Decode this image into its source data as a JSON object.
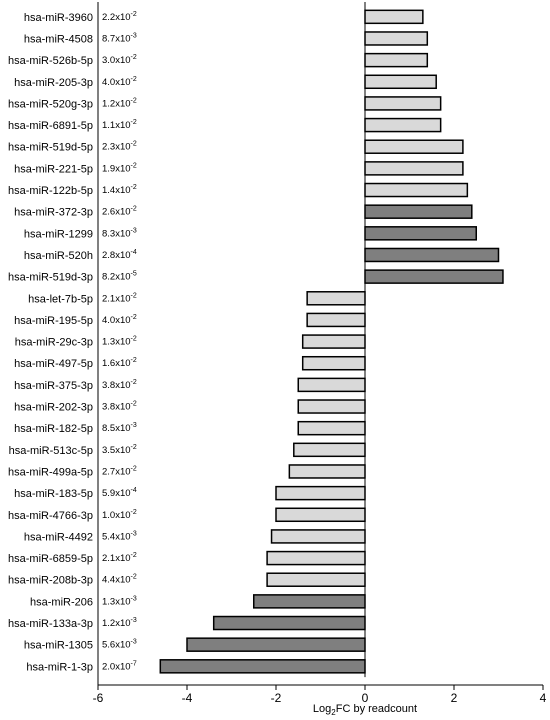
{
  "chart_data": {
    "type": "bar",
    "orientation": "horizontal",
    "xlabel": "Log2FC by readcount",
    "xlim": [
      -6,
      4
    ],
    "xticks": [
      -6,
      -4,
      -2,
      0,
      2,
      4
    ],
    "grid": false,
    "legend": "none",
    "colors": {
      "light": "#d9d9d9",
      "dark": "#7f7f7f",
      "stroke": "#000000"
    },
    "bars": [
      {
        "name": "hsa-miR-3960",
        "p_base": "2.2x10",
        "p_exp": "-2",
        "value": 1.3,
        "shade": "light"
      },
      {
        "name": "hsa-miR-4508",
        "p_base": "8.7x10",
        "p_exp": "-3",
        "value": 1.4,
        "shade": "light"
      },
      {
        "name": "hsa-miR-526b-5p",
        "p_base": "3.0x10",
        "p_exp": "-2",
        "value": 1.4,
        "shade": "light"
      },
      {
        "name": "hsa-miR-205-3p",
        "p_base": "4.0x10",
        "p_exp": "-2",
        "value": 1.6,
        "shade": "light"
      },
      {
        "name": "hsa-miR-520g-3p",
        "p_base": "1.2x10",
        "p_exp": "-2",
        "value": 1.7,
        "shade": "light"
      },
      {
        "name": "hsa-miR-6891-5p",
        "p_base": "1.1x10",
        "p_exp": "-2",
        "value": 1.7,
        "shade": "light"
      },
      {
        "name": "hsa-miR-519d-5p",
        "p_base": "2.3x10",
        "p_exp": "-2",
        "value": 2.2,
        "shade": "light"
      },
      {
        "name": "hsa-miR-221-5p",
        "p_base": "1.9x10",
        "p_exp": "-2",
        "value": 2.2,
        "shade": "light"
      },
      {
        "name": "hsa-miR-122b-5p",
        "p_base": "1.4x10",
        "p_exp": "-2",
        "value": 2.3,
        "shade": "light"
      },
      {
        "name": "hsa-miR-372-3p",
        "p_base": "2.6x10",
        "p_exp": "-2",
        "value": 2.4,
        "shade": "dark"
      },
      {
        "name": "hsa-miR-1299",
        "p_base": "8.3x10",
        "p_exp": "-3",
        "value": 2.5,
        "shade": "dark"
      },
      {
        "name": "hsa-miR-520h",
        "p_base": "2.8x10",
        "p_exp": "-4",
        "value": 3.0,
        "shade": "dark"
      },
      {
        "name": "hsa-miR-519d-3p",
        "p_base": "8.2x10",
        "p_exp": "-5",
        "value": 3.1,
        "shade": "dark"
      },
      {
        "name": "hsa-let-7b-5p",
        "p_base": "2.1x10",
        "p_exp": "-2",
        "value": -1.3,
        "shade": "light"
      },
      {
        "name": "hsa-miR-195-5p",
        "p_base": "4.0x10",
        "p_exp": "-2",
        "value": -1.3,
        "shade": "light"
      },
      {
        "name": "hsa-miR-29c-3p",
        "p_base": "1.3x10",
        "p_exp": "-2",
        "value": -1.4,
        "shade": "light"
      },
      {
        "name": "hsa-miR-497-5p",
        "p_base": "1.6x10",
        "p_exp": "-2",
        "value": -1.4,
        "shade": "light"
      },
      {
        "name": "hsa-miR-375-3p",
        "p_base": "3.8x10",
        "p_exp": "-2",
        "value": -1.5,
        "shade": "light"
      },
      {
        "name": "hsa-miR-202-3p",
        "p_base": "3.8x10",
        "p_exp": "-2",
        "value": -1.5,
        "shade": "light"
      },
      {
        "name": "hsa-miR-182-5p",
        "p_base": "8.5x10",
        "p_exp": "-3",
        "value": -1.5,
        "shade": "light"
      },
      {
        "name": "hsa-miR-513c-5p",
        "p_base": "3.5x10",
        "p_exp": "-2",
        "value": -1.6,
        "shade": "light"
      },
      {
        "name": "hsa-miR-499a-5p",
        "p_base": "2.7x10",
        "p_exp": "-2",
        "value": -1.7,
        "shade": "light"
      },
      {
        "name": "hsa-miR-183-5p",
        "p_base": "5.9x10",
        "p_exp": "-4",
        "value": -2.0,
        "shade": "light"
      },
      {
        "name": "hsa-miR-4766-3p",
        "p_base": "1.0x10",
        "p_exp": "-2",
        "value": -2.0,
        "shade": "light"
      },
      {
        "name": "hsa-miR-4492",
        "p_base": "5.4x10",
        "p_exp": "-3",
        "value": -2.1,
        "shade": "light"
      },
      {
        "name": "hsa-miR-6859-5p",
        "p_base": "2.1x10",
        "p_exp": "-2",
        "value": -2.2,
        "shade": "light"
      },
      {
        "name": "hsa-miR-208b-3p",
        "p_base": "4.4x10",
        "p_exp": "-2",
        "value": -2.2,
        "shade": "light"
      },
      {
        "name": "hsa-miR-206",
        "p_base": "1.3x10",
        "p_exp": "-3",
        "value": -2.5,
        "shade": "dark"
      },
      {
        "name": "hsa-miR-133a-3p",
        "p_base": "1.2x10",
        "p_exp": "-3",
        "value": -3.4,
        "shade": "dark"
      },
      {
        "name": "hsa-miR-1305",
        "p_base": "5.6x10",
        "p_exp": "-3",
        "value": -4.0,
        "shade": "dark"
      },
      {
        "name": "hsa-miR-1-3p",
        "p_base": "2.0x10",
        "p_exp": "-7",
        "value": -4.6,
        "shade": "dark"
      }
    ]
  }
}
